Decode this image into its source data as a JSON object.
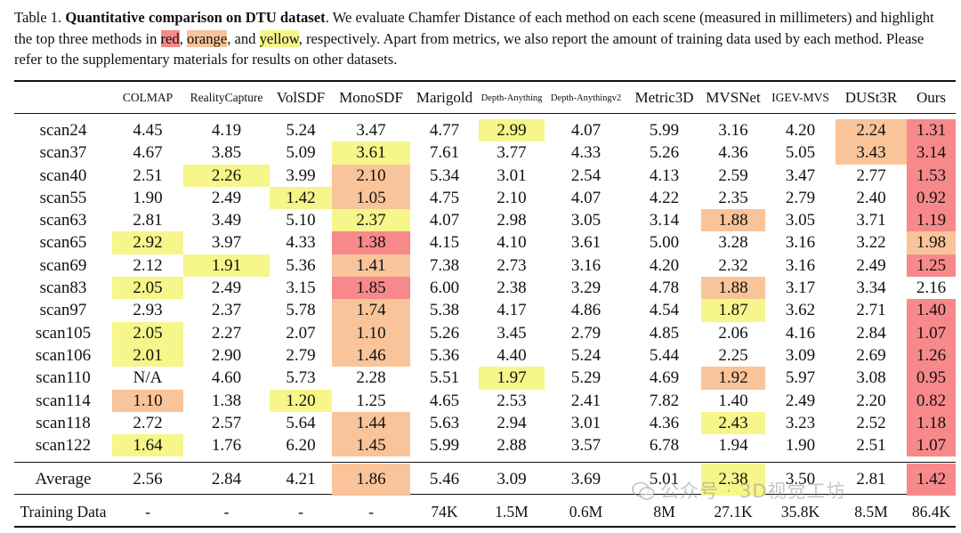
{
  "caption": {
    "label": "Table 1.",
    "bold_title": "Quantitative comparison on DTU dataset",
    "text_1": ". We evaluate Chamfer Distance of each method on each scene (measured in millimeters) and highlight the top three methods in ",
    "red_word": "red",
    "sep_1": ", ",
    "orange_word": "orange",
    "sep_2": ", and ",
    "yellow_word": "yellow",
    "text_2": ", respectively. Apart from metrics, we also report the amount of training data used by each method. Please refer to the supplementary materials for results on other datasets."
  },
  "colors": {
    "red": "#f7898b",
    "orange": "#f9c49a",
    "yellow": "#f6f68a"
  },
  "table": {
    "headers": [
      "",
      "COLMAP",
      "RealityCapture",
      "VolSDF",
      "MonoSDF",
      "Marigold",
      "Depth-Anything",
      "Depth-Anythingv2",
      "Metric3D",
      "MVSNet",
      "IGEV-MVS",
      "DUSt3R",
      "Ours"
    ],
    "rows": [
      {
        "label": "scan24",
        "cells": [
          {
            "v": "4.45"
          },
          {
            "v": "4.19"
          },
          {
            "v": "5.24"
          },
          {
            "v": "3.47"
          },
          {
            "v": "4.77"
          },
          {
            "v": "2.99",
            "hl": "yellow"
          },
          {
            "v": "4.07"
          },
          {
            "v": "5.99"
          },
          {
            "v": "3.16"
          },
          {
            "v": "4.20"
          },
          {
            "v": "2.24",
            "hl": "orange"
          },
          {
            "v": "1.31",
            "hl": "red"
          }
        ]
      },
      {
        "label": "scan37",
        "cells": [
          {
            "v": "4.67"
          },
          {
            "v": "3.85"
          },
          {
            "v": "5.09"
          },
          {
            "v": "3.61",
            "hl": "yellow"
          },
          {
            "v": "7.61"
          },
          {
            "v": "3.77"
          },
          {
            "v": "4.33"
          },
          {
            "v": "5.26"
          },
          {
            "v": "4.36"
          },
          {
            "v": "5.05"
          },
          {
            "v": "3.43",
            "hl": "orange"
          },
          {
            "v": "3.14",
            "hl": "red"
          }
        ]
      },
      {
        "label": "scan40",
        "cells": [
          {
            "v": "2.51"
          },
          {
            "v": "2.26",
            "hl": "yellow"
          },
          {
            "v": "3.99"
          },
          {
            "v": "2.10",
            "hl": "orange"
          },
          {
            "v": "5.34"
          },
          {
            "v": "3.01"
          },
          {
            "v": "2.54"
          },
          {
            "v": "4.13"
          },
          {
            "v": "2.59"
          },
          {
            "v": "3.47"
          },
          {
            "v": "2.77"
          },
          {
            "v": "1.53",
            "hl": "red"
          }
        ]
      },
      {
        "label": "scan55",
        "cells": [
          {
            "v": "1.90"
          },
          {
            "v": "2.49"
          },
          {
            "v": "1.42",
            "hl": "yellow"
          },
          {
            "v": "1.05",
            "hl": "orange"
          },
          {
            "v": "4.75"
          },
          {
            "v": "2.10"
          },
          {
            "v": "4.07"
          },
          {
            "v": "4.22"
          },
          {
            "v": "2.35"
          },
          {
            "v": "2.79"
          },
          {
            "v": "2.40"
          },
          {
            "v": "0.92",
            "hl": "red"
          }
        ]
      },
      {
        "label": "scan63",
        "cells": [
          {
            "v": "2.81"
          },
          {
            "v": "3.49"
          },
          {
            "v": "5.10"
          },
          {
            "v": "2.37",
            "hl": "yellow"
          },
          {
            "v": "4.07"
          },
          {
            "v": "2.98"
          },
          {
            "v": "3.05"
          },
          {
            "v": "3.14"
          },
          {
            "v": "1.88",
            "hl": "orange"
          },
          {
            "v": "3.05"
          },
          {
            "v": "3.71"
          },
          {
            "v": "1.19",
            "hl": "red"
          }
        ]
      },
      {
        "label": "scan65",
        "cells": [
          {
            "v": "2.92",
            "hl": "yellow"
          },
          {
            "v": "3.97"
          },
          {
            "v": "4.33"
          },
          {
            "v": "1.38",
            "hl": "red"
          },
          {
            "v": "4.15"
          },
          {
            "v": "4.10"
          },
          {
            "v": "3.61"
          },
          {
            "v": "5.00"
          },
          {
            "v": "3.28"
          },
          {
            "v": "3.16"
          },
          {
            "v": "3.22"
          },
          {
            "v": "1.98",
            "hl": "orange"
          }
        ]
      },
      {
        "label": "scan69",
        "cells": [
          {
            "v": "2.12"
          },
          {
            "v": "1.91",
            "hl": "yellow"
          },
          {
            "v": "5.36"
          },
          {
            "v": "1.41",
            "hl": "orange"
          },
          {
            "v": "7.38"
          },
          {
            "v": "2.73"
          },
          {
            "v": "3.16"
          },
          {
            "v": "4.20"
          },
          {
            "v": "2.32"
          },
          {
            "v": "3.16"
          },
          {
            "v": "2.49"
          },
          {
            "v": "1.25",
            "hl": "red"
          }
        ]
      },
      {
        "label": "scan83",
        "cells": [
          {
            "v": "2.05",
            "hl": "yellow"
          },
          {
            "v": "2.49"
          },
          {
            "v": "3.15"
          },
          {
            "v": "1.85",
            "hl": "red"
          },
          {
            "v": "6.00"
          },
          {
            "v": "2.38"
          },
          {
            "v": "3.29"
          },
          {
            "v": "4.78"
          },
          {
            "v": "1.88",
            "hl": "orange"
          },
          {
            "v": "3.17"
          },
          {
            "v": "3.34"
          },
          {
            "v": "2.16"
          }
        ]
      },
      {
        "label": "scan97",
        "cells": [
          {
            "v": "2.93"
          },
          {
            "v": "2.37"
          },
          {
            "v": "5.78"
          },
          {
            "v": "1.74",
            "hl": "orange"
          },
          {
            "v": "5.38"
          },
          {
            "v": "4.17"
          },
          {
            "v": "4.86"
          },
          {
            "v": "4.54"
          },
          {
            "v": "1.87",
            "hl": "yellow"
          },
          {
            "v": "3.62"
          },
          {
            "v": "2.71"
          },
          {
            "v": "1.40",
            "hl": "red"
          }
        ]
      },
      {
        "label": "scan105",
        "cells": [
          {
            "v": "2.05",
            "hl": "yellow"
          },
          {
            "v": "2.27"
          },
          {
            "v": "2.07"
          },
          {
            "v": "1.10",
            "hl": "orange"
          },
          {
            "v": "5.26"
          },
          {
            "v": "3.45"
          },
          {
            "v": "2.79"
          },
          {
            "v": "4.85"
          },
          {
            "v": "2.06"
          },
          {
            "v": "4.16"
          },
          {
            "v": "2.84"
          },
          {
            "v": "1.07",
            "hl": "red"
          }
        ]
      },
      {
        "label": "scan106",
        "cells": [
          {
            "v": "2.01",
            "hl": "yellow"
          },
          {
            "v": "2.90"
          },
          {
            "v": "2.79"
          },
          {
            "v": "1.46",
            "hl": "orange"
          },
          {
            "v": "5.36"
          },
          {
            "v": "4.40"
          },
          {
            "v": "5.24"
          },
          {
            "v": "5.44"
          },
          {
            "v": "2.25"
          },
          {
            "v": "3.09"
          },
          {
            "v": "2.69"
          },
          {
            "v": "1.26",
            "hl": "red"
          }
        ]
      },
      {
        "label": "scan110",
        "cells": [
          {
            "v": "N/A"
          },
          {
            "v": "4.60"
          },
          {
            "v": "5.73"
          },
          {
            "v": "2.28"
          },
          {
            "v": "5.51"
          },
          {
            "v": "1.97",
            "hl": "yellow"
          },
          {
            "v": "5.29"
          },
          {
            "v": "4.69"
          },
          {
            "v": "1.92",
            "hl": "orange"
          },
          {
            "v": "5.97"
          },
          {
            "v": "3.08"
          },
          {
            "v": "0.95",
            "hl": "red"
          }
        ]
      },
      {
        "label": "scan114",
        "cells": [
          {
            "v": "1.10",
            "hl": "orange"
          },
          {
            "v": "1.38"
          },
          {
            "v": "1.20",
            "hl": "yellow"
          },
          {
            "v": "1.25"
          },
          {
            "v": "4.65"
          },
          {
            "v": "2.53"
          },
          {
            "v": "2.41"
          },
          {
            "v": "7.82"
          },
          {
            "v": "1.40"
          },
          {
            "v": "2.49"
          },
          {
            "v": "2.20"
          },
          {
            "v": "0.82",
            "hl": "red"
          }
        ]
      },
      {
        "label": "scan118",
        "cells": [
          {
            "v": "2.72"
          },
          {
            "v": "2.57"
          },
          {
            "v": "5.64"
          },
          {
            "v": "1.44",
            "hl": "orange"
          },
          {
            "v": "5.63"
          },
          {
            "v": "2.94"
          },
          {
            "v": "3.01"
          },
          {
            "v": "4.36"
          },
          {
            "v": "2.43",
            "hl": "yellow"
          },
          {
            "v": "3.23"
          },
          {
            "v": "2.52"
          },
          {
            "v": "1.18",
            "hl": "red"
          }
        ]
      },
      {
        "label": "scan122",
        "cells": [
          {
            "v": "1.64",
            "hl": "yellow"
          },
          {
            "v": "1.76"
          },
          {
            "v": "6.20"
          },
          {
            "v": "1.45",
            "hl": "orange"
          },
          {
            "v": "5.99"
          },
          {
            "v": "2.88"
          },
          {
            "v": "3.57"
          },
          {
            "v": "6.78"
          },
          {
            "v": "1.94"
          },
          {
            "v": "1.90"
          },
          {
            "v": "2.51"
          },
          {
            "v": "1.07",
            "hl": "red"
          }
        ]
      }
    ],
    "average": {
      "label": "Average",
      "cells": [
        {
          "v": "2.56"
        },
        {
          "v": "2.84"
        },
        {
          "v": "4.21"
        },
        {
          "v": "1.86",
          "hl": "orange"
        },
        {
          "v": "5.46"
        },
        {
          "v": "3.09"
        },
        {
          "v": "3.69"
        },
        {
          "v": "5.01"
        },
        {
          "v": "2.38",
          "hl": "yellow"
        },
        {
          "v": "3.50"
        },
        {
          "v": "2.81"
        },
        {
          "v": "1.42",
          "hl": "red"
        }
      ]
    },
    "training": {
      "label": "Training Data",
      "cells": [
        {
          "v": "-"
        },
        {
          "v": "-"
        },
        {
          "v": "-"
        },
        {
          "v": "-"
        },
        {
          "v": "74K"
        },
        {
          "v": "1.5M"
        },
        {
          "v": "0.6M"
        },
        {
          "v": "8M"
        },
        {
          "v": "27.1K"
        },
        {
          "v": "35.8K"
        },
        {
          "v": "8.5M"
        },
        {
          "v": "86.4K"
        }
      ]
    }
  },
  "watermark": {
    "text": "公众号 · 3D视觉工坊"
  }
}
